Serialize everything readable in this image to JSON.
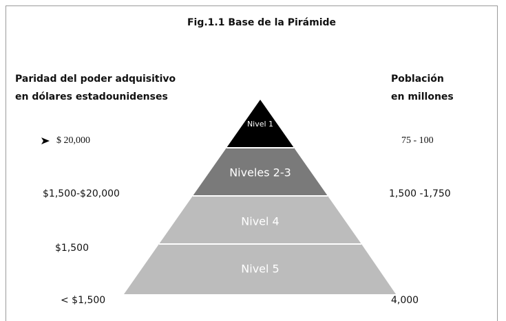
{
  "title": "Fig.1.1 Base de la Pirámide",
  "left_header": [
    "Paridad del poder adquisitivo",
    "en dólares estadounidenses"
  ],
  "right_header": [
    "Población",
    "en millones"
  ],
  "levels": [
    {
      "label": "Nivel 1"
    },
    {
      "label": "Niveles 2-3"
    },
    {
      "label": "Nivel 4"
    },
    {
      "label": "Nivel 5"
    }
  ],
  "left_labels": [
    "$ 20,000",
    "$1,500-$20,000",
    "$1,500",
    "< $1,500"
  ],
  "right_labels": [
    "75 - 100",
    "1,500 -1,750",
    "4,000"
  ]
}
